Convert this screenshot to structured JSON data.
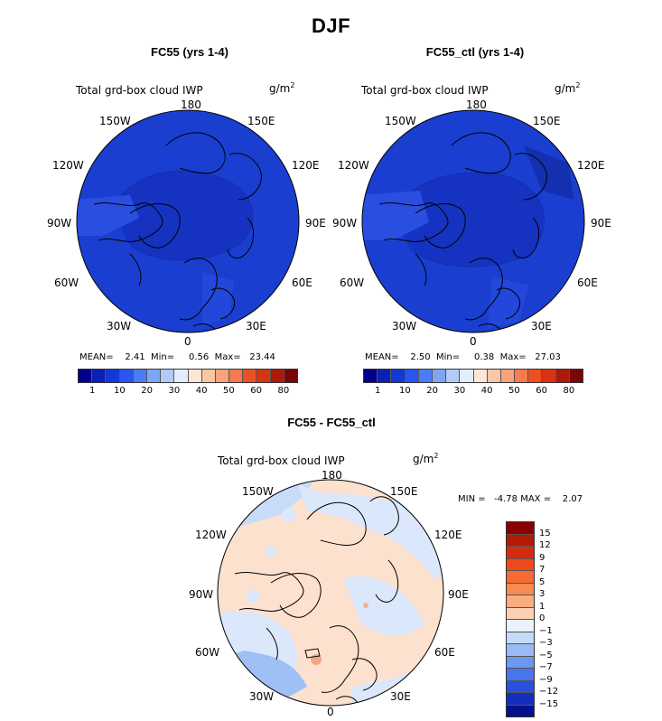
{
  "figure": {
    "season_title": "DJF"
  },
  "panels": [
    {
      "title": "FC55 (yrs 1-4)",
      "variable": "Total grd-box cloud IWP",
      "units_base": "g/m",
      "units_exp": "2",
      "stats_line": "MEAN=    2.41  Min=     0.56  Max=   23.44",
      "fill_color": "#1a3fd0",
      "inner_color": "#1533c0"
    },
    {
      "title": "FC55_ctl (yrs 1-4)",
      "variable": "Total grd-box cloud IWP",
      "units_base": "g/m",
      "units_exp": "2",
      "stats_line": "MEAN=    2.50  Min=     0.38  Max=   27.03",
      "fill_color": "#1a3fd0",
      "inner_color": "#1533c0"
    },
    {
      "title": "FC55 - FC55_ctl",
      "variable": "Total grd-box cloud IWP",
      "units_base": "g/m",
      "units_exp": "2",
      "stats_line": "MIN =   -4.78 MAX =    2.07",
      "fill_color": "#fde1cf",
      "inner_color": "#d8e7fb"
    }
  ],
  "lon_labels": {
    "n180": "180",
    "w150": "150W",
    "e150": "150E",
    "w120": "120W",
    "e120": "120E",
    "w90": "90W",
    "e90": "90E",
    "w60": "60W",
    "e60": "60E",
    "w30": "30W",
    "e30": "30E",
    "z0": "0"
  },
  "colorbar_abs": {
    "colors": [
      "#00008b",
      "#0a1fb5",
      "#1238d6",
      "#2a55ef",
      "#4a7cf5",
      "#7ea6f7",
      "#b1cbf8",
      "#e2ecfb",
      "#fde6d6",
      "#fbc6a6",
      "#f8a37c",
      "#f47a4f",
      "#ee4f25",
      "#d63412",
      "#ab1a0c",
      "#7a0707"
    ],
    "tick_labels": [
      "1",
      "10",
      "20",
      "30",
      "40",
      "50",
      "60",
      "80"
    ]
  },
  "colorbar_diff": {
    "colors": [
      "#8b0000",
      "#b51a05",
      "#d62a0e",
      "#ef4a1d",
      "#f86a32",
      "#f98a52",
      "#fbac80",
      "#fdd0b3",
      "#eaf2fe",
      "#c6daf9",
      "#99baf4",
      "#6d98f0",
      "#4775ec",
      "#2951df",
      "#142ebe",
      "#06128c"
    ],
    "tick_labels": [
      "15",
      "12",
      "9",
      "7",
      "5",
      "3",
      "1",
      "0",
      "−1",
      "−3",
      "−5",
      "−7",
      "−9",
      "−12",
      "−15"
    ]
  }
}
